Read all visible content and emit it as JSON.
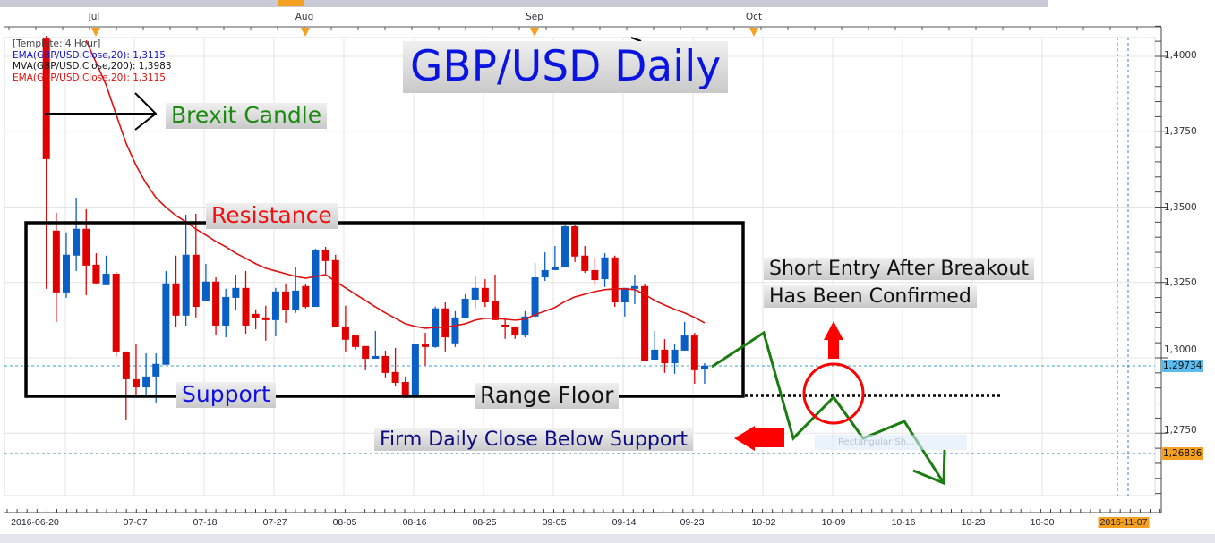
{
  "window": {
    "scrollbar": "horizontal-scrollbar"
  },
  "legend": {
    "template": "[Template: 4 Hour]",
    "ema_blue": "EMA(GBP/USD.Close,20): 1,3115",
    "mva": "MVA(GBP/USD.Close,200): 1,3983",
    "ema_red": "EMA(GBP/USD.Close,20): 1,3115"
  },
  "annotations": {
    "title": "GBP/USD Daily",
    "brexit": "Brexit Candle",
    "resistance": "Resistance",
    "support": "Support",
    "range_floor": "Range Floor",
    "firm_close": "Firm Daily Close Below Support",
    "short_entry_line1": "Short Entry After Breakout",
    "short_entry_line2": "Has Been Confirmed",
    "tooltip": "Rectangular Sh..."
  },
  "colors": {
    "up": "#0a5fc4",
    "down": "#e00000",
    "ema": "#e01010",
    "arrow_green": "#1a7d10",
    "annotation_red": "#ff0000",
    "current_price_bg": "#5bbcf0",
    "marker_bg": "#f5a020"
  },
  "chart_data": {
    "type": "candlestick",
    "title": "GBP/USD Daily",
    "top_axis_months": [
      "Jul",
      "Aug",
      "Sep",
      "Oct"
    ],
    "x_ticks": [
      "2016-06-20",
      "07-07",
      "07-18",
      "07-27",
      "08-05",
      "08-16",
      "08-25",
      "09-05",
      "09-14",
      "09-23",
      "10-02",
      "10-09",
      "10-16",
      "10-23",
      "10-30",
      "2016-11-07"
    ],
    "y_ticks": [
      "1,4000",
      "1,3750",
      "1,3500",
      "1,3250",
      "1,3000",
      "1,2750"
    ],
    "ylim": [
      1.255,
      1.41
    ],
    "grid": true,
    "current_price": "1,29734",
    "marker_price": "1,26836",
    "candles_ohlc": [
      [
        1.4059,
        1.4068,
        1.3229,
        1.3659
      ],
      [
        1.3422,
        1.3481,
        1.3119,
        1.3217
      ],
      [
        1.3217,
        1.3416,
        1.3199,
        1.3342
      ],
      [
        1.3339,
        1.3531,
        1.3288,
        1.3428
      ],
      [
        1.3428,
        1.3493,
        1.3208,
        1.3306
      ],
      [
        1.3309,
        1.3347,
        1.3247,
        1.3247
      ],
      [
        1.3241,
        1.3339,
        1.3241,
        1.3279
      ],
      [
        1.3279,
        1.3285,
        1.3003,
        1.3021
      ],
      [
        1.3021,
        1.3021,
        1.2793,
        1.2929
      ],
      [
        1.2929,
        1.3045,
        1.2876,
        1.2902
      ],
      [
        1.2902,
        1.3015,
        1.2876,
        1.2938
      ],
      [
        1.2938,
        1.3015,
        1.2852,
        1.298
      ],
      [
        1.2977,
        1.3288,
        1.2977,
        1.3247
      ],
      [
        1.3247,
        1.3339,
        1.3101,
        1.314
      ],
      [
        1.314,
        1.3475,
        1.3107,
        1.3342
      ],
      [
        1.3342,
        1.3478,
        1.3134,
        1.3169
      ],
      [
        1.319,
        1.3312,
        1.319,
        1.3253
      ],
      [
        1.3253,
        1.3267,
        1.3074,
        1.3107
      ],
      [
        1.3107,
        1.3229,
        1.3068,
        1.3202
      ],
      [
        1.3199,
        1.3276,
        1.3158,
        1.3232
      ],
      [
        1.3232,
        1.3288,
        1.308,
        1.3107
      ],
      [
        1.3146,
        1.3161,
        1.3095,
        1.3131
      ],
      [
        1.3134,
        1.3173,
        1.3057,
        1.3125
      ],
      [
        1.3125,
        1.3232,
        1.3071,
        1.322
      ],
      [
        1.322,
        1.3247,
        1.3116,
        1.3158
      ],
      [
        1.3158,
        1.33,
        1.3149,
        1.3223
      ],
      [
        1.3238,
        1.3244,
        1.3164,
        1.3169
      ],
      [
        1.3169,
        1.3362,
        1.3169,
        1.3356
      ],
      [
        1.3356,
        1.3368,
        1.3279,
        1.3321
      ],
      [
        1.3324,
        1.3342,
        1.3101,
        1.3101
      ],
      [
        1.3104,
        1.3173,
        1.3021,
        1.306
      ],
      [
        1.3074,
        1.3074,
        1.3027,
        1.3036
      ],
      [
        1.3039,
        1.3039,
        1.2959,
        1.2997
      ],
      [
        1.2997,
        1.3089,
        1.2997,
        1.3006
      ],
      [
        1.3006,
        1.3024,
        1.2935,
        1.295
      ],
      [
        1.2953,
        1.3033,
        1.2905,
        1.2917
      ],
      [
        1.292,
        1.2938,
        1.2867,
        1.2873
      ],
      [
        1.2873,
        1.3045,
        1.2873,
        1.3045
      ],
      [
        1.3045,
        1.3083,
        1.2974,
        1.3036
      ],
      [
        1.3036,
        1.317,
        1.3033,
        1.3164
      ],
      [
        1.3164,
        1.3184,
        1.3021,
        1.3068
      ],
      [
        1.3048,
        1.3155,
        1.3036,
        1.3134
      ],
      [
        1.3131,
        1.3211,
        1.3131,
        1.3196
      ],
      [
        1.3193,
        1.327,
        1.3164,
        1.3232
      ],
      [
        1.3232,
        1.3261,
        1.3169,
        1.3184
      ],
      [
        1.3187,
        1.3276,
        1.3125,
        1.3125
      ],
      [
        1.311,
        1.3134,
        1.3063,
        1.3101
      ],
      [
        1.3104,
        1.3104,
        1.3063,
        1.3074
      ],
      [
        1.3074,
        1.3155,
        1.3068,
        1.3137
      ],
      [
        1.3137,
        1.3315,
        1.3131,
        1.3267
      ],
      [
        1.3267,
        1.335,
        1.3255,
        1.3291
      ],
      [
        1.3291,
        1.3371,
        1.3291,
        1.33
      ],
      [
        1.33,
        1.3439,
        1.33,
        1.3436
      ],
      [
        1.3436,
        1.3439,
        1.3318,
        1.3336
      ],
      [
        1.3339,
        1.3371,
        1.3282,
        1.3288
      ],
      [
        1.3291,
        1.3332,
        1.3241,
        1.3258
      ],
      [
        1.3261,
        1.3347,
        1.3235,
        1.3333
      ],
      [
        1.3333,
        1.3339,
        1.3169,
        1.3184
      ],
      [
        1.3184,
        1.3232,
        1.3137,
        1.3232
      ],
      [
        1.3229,
        1.3276,
        1.3178,
        1.3238
      ],
      [
        1.3238,
        1.3244,
        1.2991,
        1.2991
      ],
      [
        1.2994,
        1.3089,
        1.2994,
        1.3027
      ],
      [
        1.3027,
        1.3062,
        1.295,
        1.2982
      ],
      [
        1.2982,
        1.3045,
        1.2947,
        1.3027
      ],
      [
        1.3024,
        1.3119,
        1.3024,
        1.3074
      ],
      [
        1.3074,
        1.3083,
        1.2914,
        1.2959
      ],
      [
        1.2962,
        1.2982,
        1.2914,
        1.2974
      ]
    ],
    "ema20": [
      null,
      null,
      null,
      null,
      1.4053,
      1.3979,
      1.3905,
      1.3807,
      1.3712,
      1.3638,
      1.3579,
      1.3531,
      1.3499,
      1.3472,
      1.3451,
      1.3427,
      1.3407,
      1.3386,
      1.3368,
      1.3347,
      1.333,
      1.3312,
      1.3297,
      1.3288,
      1.3279,
      1.327,
      1.3264,
      1.327,
      1.3276,
      1.3253,
      1.3232,
      1.3211,
      1.319,
      1.3169,
      1.3149,
      1.3131,
      1.3113,
      1.3104,
      1.3098,
      1.3101,
      1.3101,
      1.3107,
      1.3113,
      1.3125,
      1.3131,
      1.3131,
      1.3128,
      1.3125,
      1.3128,
      1.3143,
      1.3155,
      1.3167,
      1.3187,
      1.3202,
      1.3211,
      1.322,
      1.3226,
      1.3229,
      1.3229,
      1.3226,
      1.3211,
      1.319,
      1.3175,
      1.3161,
      1.3149,
      1.3134,
      1.3116
    ],
    "range_box": {
      "resistance": 1.345,
      "support": 1.2875
    }
  }
}
